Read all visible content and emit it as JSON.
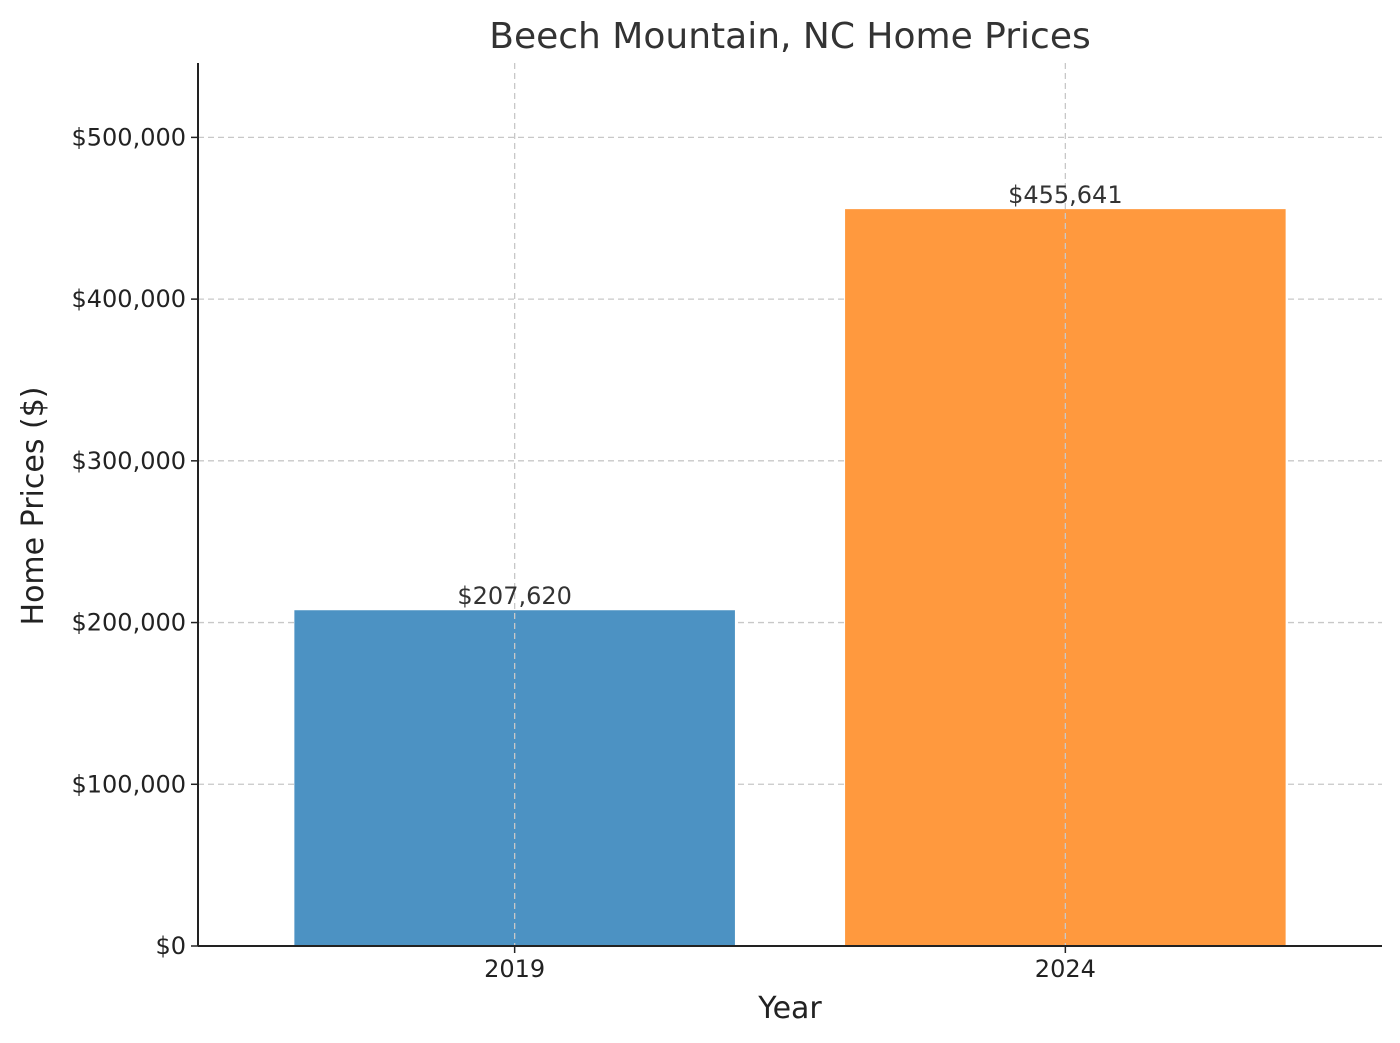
{
  "chart_data": {
    "type": "bar",
    "title": "Beech Mountain, NC Home Prices",
    "xlabel": "Year",
    "ylabel": "Home Prices ($)",
    "categories": [
      "2019",
      "2024"
    ],
    "values": [
      207620,
      455641
    ],
    "value_labels": [
      "$207,620",
      "$455,641"
    ],
    "colors": [
      "#4c92c3",
      "#ff993e"
    ],
    "ylim": [
      0,
      546000
    ],
    "yticks": [
      0,
      100000,
      200000,
      300000,
      400000,
      500000
    ],
    "ytick_labels": [
      "$0",
      "$100,000",
      "$200,000",
      "$300,000",
      "$400,000",
      "$500,000"
    ],
    "grid": true,
    "legend": "none"
  }
}
